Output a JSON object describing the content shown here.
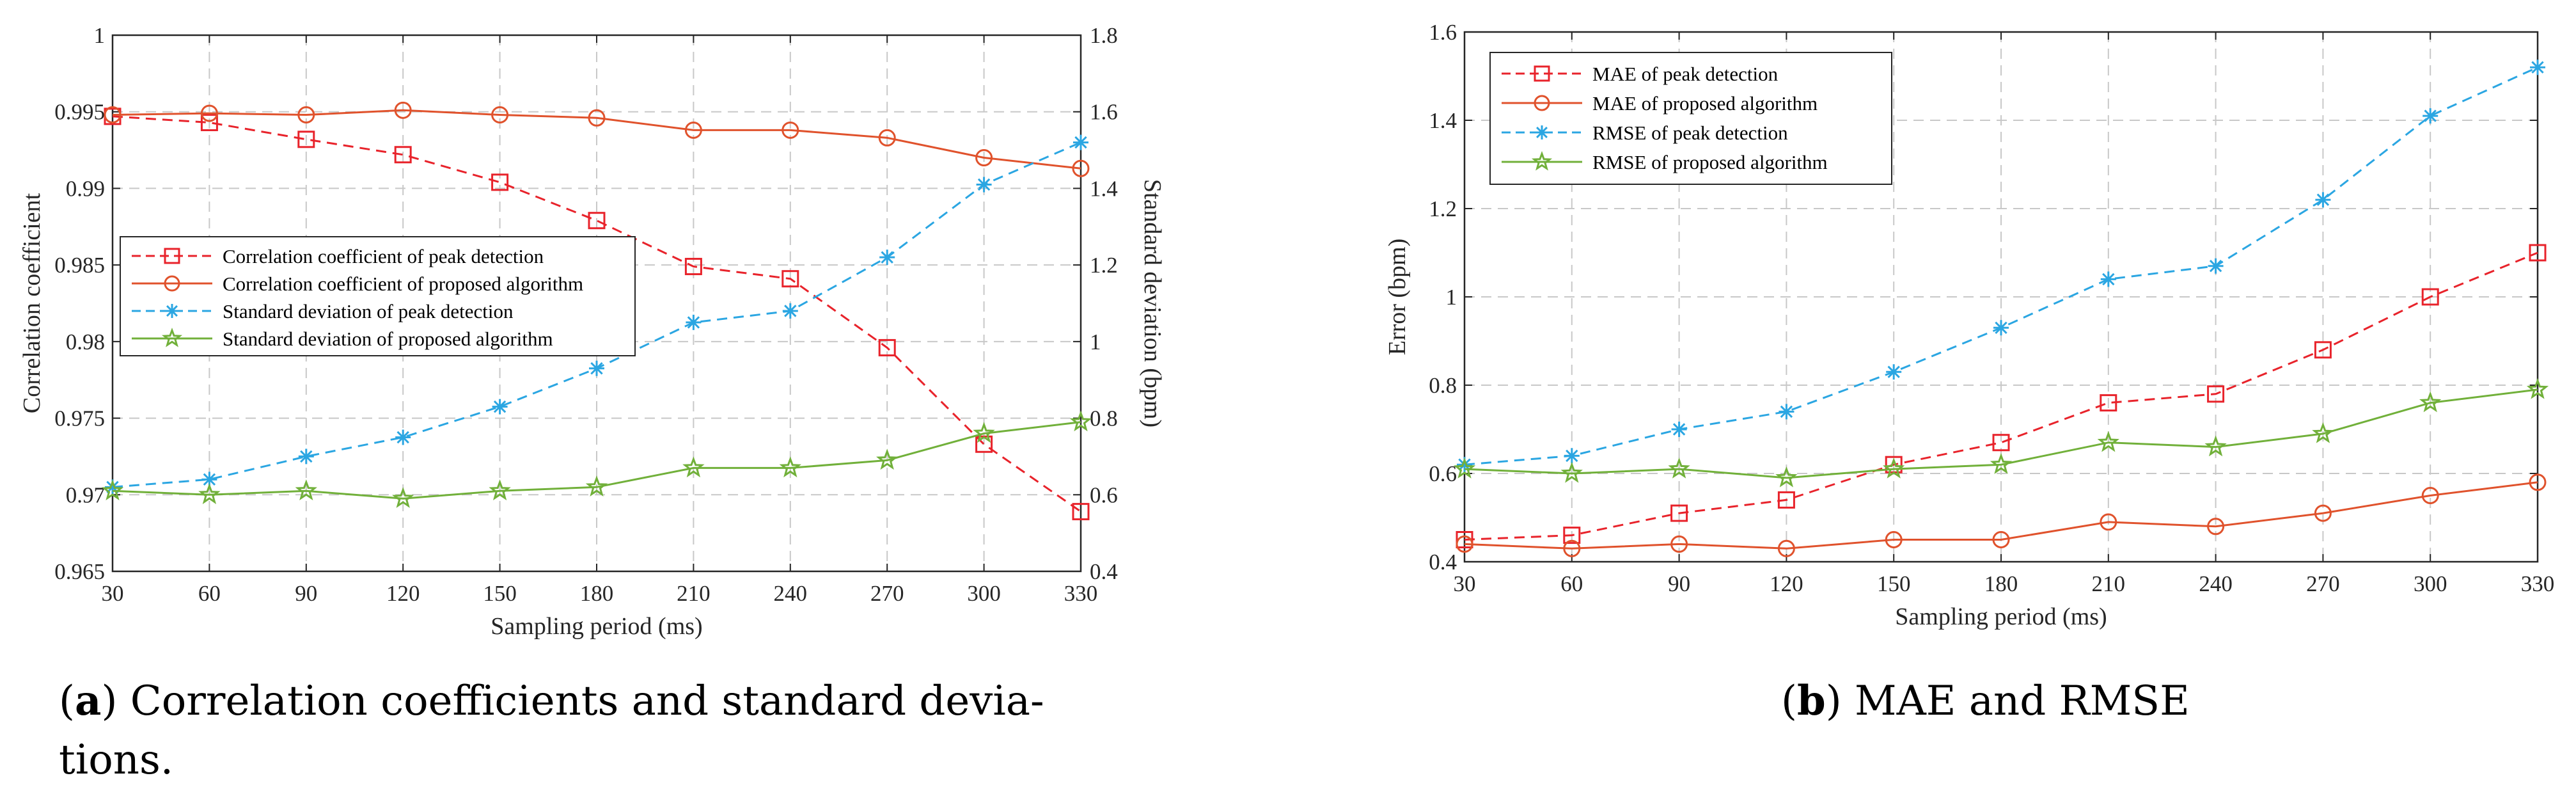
{
  "chart_data": [
    {
      "type": "line",
      "x": [
        30,
        60,
        90,
        120,
        150,
        180,
        210,
        240,
        270,
        300,
        330
      ],
      "xlabel": "Sampling period (ms)",
      "ylabel": "Correlation coefficient",
      "ylabel_right": "Standard deviation (bpm)",
      "xlim": [
        30,
        330
      ],
      "ylim": [
        0.965,
        1.0
      ],
      "ylim_right": [
        0.4,
        1.8
      ],
      "xticks": [
        "30",
        "60",
        "90",
        "120",
        "150",
        "180",
        "210",
        "240",
        "270",
        "300",
        "330"
      ],
      "yticks": [
        "0.965",
        "0.97",
        "0.975",
        "0.98",
        "0.985",
        "0.99",
        "0.995",
        "1"
      ],
      "yticks_right": [
        "0.4",
        "0.6",
        "0.8",
        "1",
        "1.2",
        "1.4",
        "1.6",
        "1.8"
      ],
      "grid": true,
      "legend_position": "center-left",
      "series": [
        {
          "name": "Correlation coefficient of peak detection",
          "axis": "left",
          "color": "#e8232b",
          "dash": true,
          "marker": "square",
          "values": [
            0.9947,
            0.9943,
            0.9932,
            0.9922,
            0.9904,
            0.9879,
            0.9849,
            0.9841,
            0.9796,
            0.9733,
            0.9689
          ]
        },
        {
          "name": "Correlation coefficient of proposed algorithm",
          "axis": "left",
          "color": "#e0522c",
          "dash": false,
          "marker": "circle",
          "values": [
            0.9948,
            0.9949,
            0.9948,
            0.9951,
            0.9948,
            0.9946,
            0.9938,
            0.9938,
            0.9933,
            0.992,
            0.9913
          ]
        },
        {
          "name": "Standard deviation of peak detection",
          "axis": "right",
          "color": "#2ba6e2",
          "dash": true,
          "marker": "asterisk",
          "values": [
            0.62,
            0.64,
            0.7,
            0.75,
            0.83,
            0.93,
            1.05,
            1.08,
            1.22,
            1.41,
            1.52
          ]
        },
        {
          "name": "Standard deviation of proposed algorithm",
          "axis": "right",
          "color": "#71b03a",
          "dash": false,
          "marker": "star",
          "values": [
            0.61,
            0.6,
            0.61,
            0.59,
            0.61,
            0.62,
            0.67,
            0.67,
            0.69,
            0.76,
            0.79
          ]
        }
      ]
    },
    {
      "type": "line",
      "x": [
        30,
        60,
        90,
        120,
        150,
        180,
        210,
        240,
        270,
        300,
        330
      ],
      "xlabel": "Sampling period (ms)",
      "ylabel": "Error (bpm)",
      "xlim": [
        30,
        330
      ],
      "ylim": [
        0.4,
        1.6
      ],
      "xticks": [
        "30",
        "60",
        "90",
        "120",
        "150",
        "180",
        "210",
        "240",
        "270",
        "300",
        "330"
      ],
      "yticks": [
        "0.4",
        "0.6",
        "0.8",
        "1",
        "1.2",
        "1.4",
        "1.6"
      ],
      "grid": true,
      "legend_position": "top-left",
      "series": [
        {
          "name": "MAE of peak detection",
          "color": "#e8232b",
          "dash": true,
          "marker": "square",
          "values": [
            0.45,
            0.46,
            0.51,
            0.54,
            0.62,
            0.67,
            0.76,
            0.78,
            0.88,
            1.0,
            1.1
          ]
        },
        {
          "name": "MAE of proposed algorithm",
          "color": "#e0522c",
          "dash": false,
          "marker": "circle",
          "values": [
            0.44,
            0.43,
            0.44,
            0.43,
            0.45,
            0.45,
            0.49,
            0.48,
            0.51,
            0.55,
            0.58
          ]
        },
        {
          "name": "RMSE of peak detection",
          "color": "#2ba6e2",
          "dash": true,
          "marker": "asterisk",
          "values": [
            0.62,
            0.64,
            0.7,
            0.74,
            0.83,
            0.93,
            1.04,
            1.07,
            1.22,
            1.41,
            1.52
          ]
        },
        {
          "name": "RMSE of proposed algorithm",
          "color": "#71b03a",
          "dash": false,
          "marker": "star",
          "values": [
            0.61,
            0.6,
            0.61,
            0.59,
            0.61,
            0.62,
            0.67,
            0.66,
            0.69,
            0.76,
            0.79
          ]
        }
      ]
    }
  ],
  "captions": [
    {
      "letter": "a",
      "text": " Correlation coefficients and standard devia-",
      "line2": "tions."
    },
    {
      "letter": "b",
      "text": "  MAE and RMSE"
    }
  ]
}
